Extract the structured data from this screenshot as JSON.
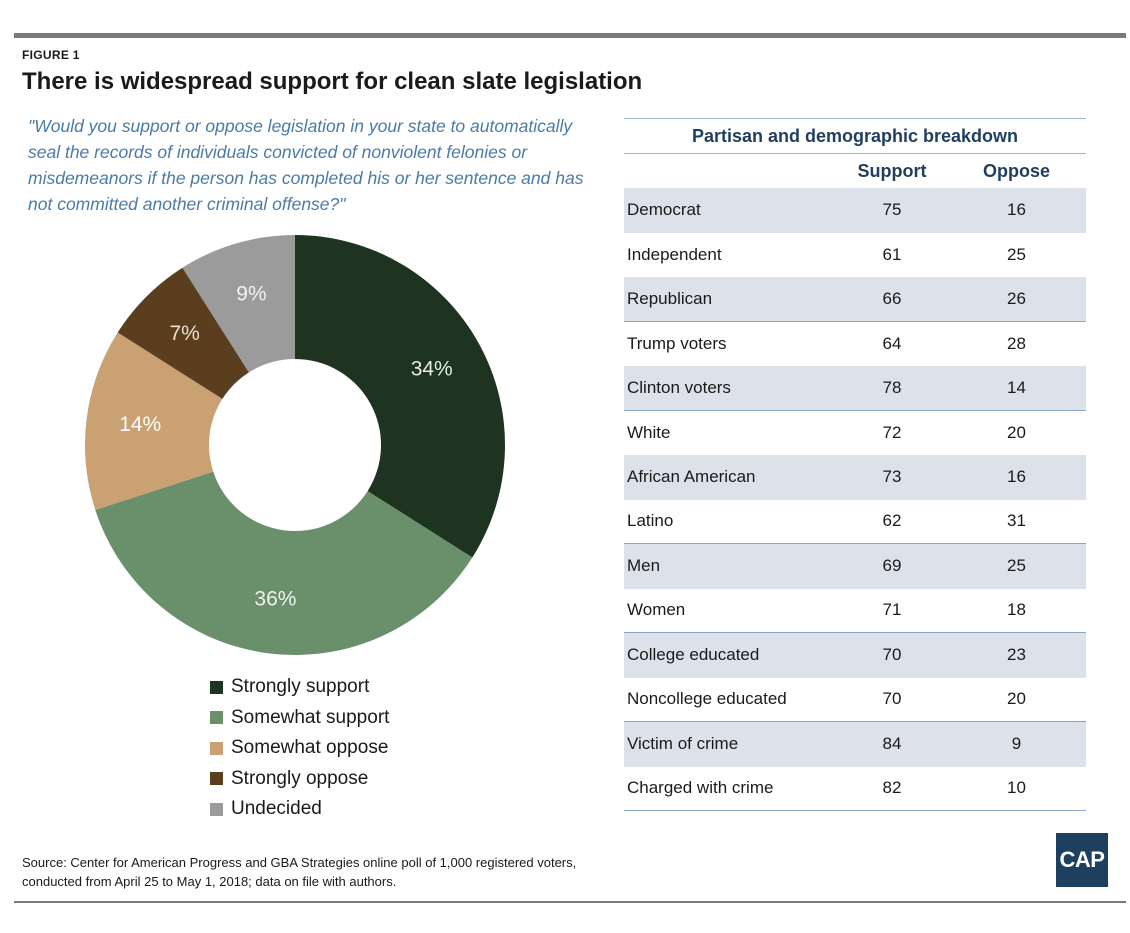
{
  "figure_label": "FIGURE 1",
  "title": "There is widespread support for clean slate legislation",
  "question": "\"Would you support or oppose legislation in your state to automatically seal the records of individuals convicted of nonviolent felonies or misdemeanors if the person has completed his or her sentence and has not committed another criminal offense?\"",
  "chart_data": {
    "type": "pie",
    "donut": true,
    "labels": [
      "Strongly support",
      "Somewhat support",
      "Somewhat oppose",
      "Strongly oppose",
      "Undecided"
    ],
    "values": [
      34,
      36,
      14,
      7,
      9
    ],
    "value_labels": [
      "34%",
      "36%",
      "14%",
      "7%",
      "9%"
    ],
    "colors": [
      "#1e3320",
      "#6a8f6b",
      "#c9a172",
      "#5a3e1e",
      "#9b9b9b"
    ],
    "label_colors": [
      "#e6ece6",
      "#eef3ee",
      "#ffffff",
      "#e8e0d4",
      "#f2f2f2"
    ],
    "legend_position": "bottom"
  },
  "table": {
    "title": "Partisan and demographic breakdown",
    "columns": [
      "Support",
      "Oppose"
    ],
    "rows": [
      {
        "label": "Democrat",
        "support": "75",
        "oppose": "16"
      },
      {
        "label": "Independent",
        "support": "61",
        "oppose": "25"
      },
      {
        "label": "Republican",
        "support": "66",
        "oppose": "26"
      },
      {
        "label": "Trump voters",
        "support": "64",
        "oppose": "28"
      },
      {
        "label": "Clinton voters",
        "support": "78",
        "oppose": "14"
      },
      {
        "label": "White",
        "support": "72",
        "oppose": "20"
      },
      {
        "label": "African American",
        "support": "73",
        "oppose": "16"
      },
      {
        "label": "Latino",
        "support": "62",
        "oppose": "31"
      },
      {
        "label": "Men",
        "support": "69",
        "oppose": "25"
      },
      {
        "label": "Women",
        "support": "71",
        "oppose": "18"
      },
      {
        "label": "College educated",
        "support": "70",
        "oppose": "23"
      },
      {
        "label": "Noncollege educated",
        "support": "70",
        "oppose": "20"
      },
      {
        "label": "Victim of crime",
        "support": "84",
        "oppose": "9"
      },
      {
        "label": "Charged with crime",
        "support": "82",
        "oppose": "10"
      }
    ]
  },
  "source_line1": "Source: Center for American Progress and GBA Strategies online poll of 1,000 registered voters,",
  "source_line2": "conducted from April 25 to May 1, 2018; data on file with authors.",
  "logo_text": "CAP"
}
